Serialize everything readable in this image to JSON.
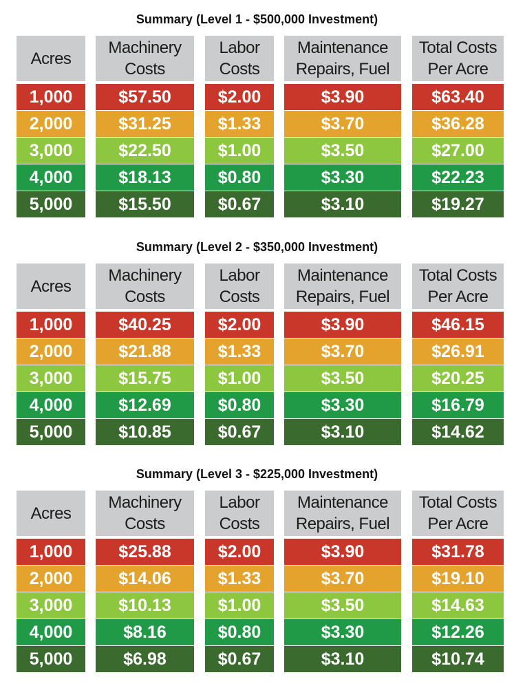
{
  "colors": {
    "row_1000": "#c8372a",
    "row_2000": "#e3a32d",
    "row_3000": "#8dc63f",
    "row_4000": "#219a48",
    "row_5000": "#3a6a2e",
    "header_bg": "#cbcccd"
  },
  "headers": [
    [
      "Acres"
    ],
    [
      "Machinery",
      "Costs"
    ],
    [
      "Labor",
      "Costs"
    ],
    [
      "Maintenance",
      "Repairs, Fuel"
    ],
    [
      "Total Costs",
      "Per Acre"
    ]
  ],
  "chart_data": [
    {
      "type": "table",
      "title": "Summary (Level 1 - $500,000 Investment)",
      "rows": [
        [
          "1,000",
          "$57.50",
          "$2.00",
          "$3.90",
          "$63.40"
        ],
        [
          "2,000",
          "$31.25",
          "$1.33",
          "$3.70",
          "$36.28"
        ],
        [
          "3,000",
          "$22.50",
          "$1.00",
          "$3.50",
          "$27.00"
        ],
        [
          "4,000",
          "$18.13",
          "$0.80",
          "$3.30",
          "$22.23"
        ],
        [
          "5,000",
          "$15.50",
          "$0.67",
          "$3.10",
          "$19.27"
        ]
      ]
    },
    {
      "type": "table",
      "title": "Summary (Level 2 - $350,000 Investment)",
      "rows": [
        [
          "1,000",
          "$40.25",
          "$2.00",
          "$3.90",
          "$46.15"
        ],
        [
          "2,000",
          "$21.88",
          "$1.33",
          "$3.70",
          "$26.91"
        ],
        [
          "3,000",
          "$15.75",
          "$1.00",
          "$3.50",
          "$20.25"
        ],
        [
          "4,000",
          "$12.69",
          "$0.80",
          "$3.30",
          "$16.79"
        ],
        [
          "5,000",
          "$10.85",
          "$0.67",
          "$3.10",
          "$14.62"
        ]
      ]
    },
    {
      "type": "table",
      "title": "Summary (Level 3 - $225,000 Investment)",
      "rows": [
        [
          "1,000",
          "$25.88",
          "$2.00",
          "$3.90",
          "$31.78"
        ],
        [
          "2,000",
          "$14.06",
          "$1.33",
          "$3.70",
          "$19.10"
        ],
        [
          "3,000",
          "$10.13",
          "$1.00",
          "$3.50",
          "$14.63"
        ],
        [
          "4,000",
          "$8.16",
          "$0.80",
          "$3.30",
          "$12.26"
        ],
        [
          "5,000",
          "$6.98",
          "$0.67",
          "$3.10",
          "$10.74"
        ]
      ]
    }
  ]
}
